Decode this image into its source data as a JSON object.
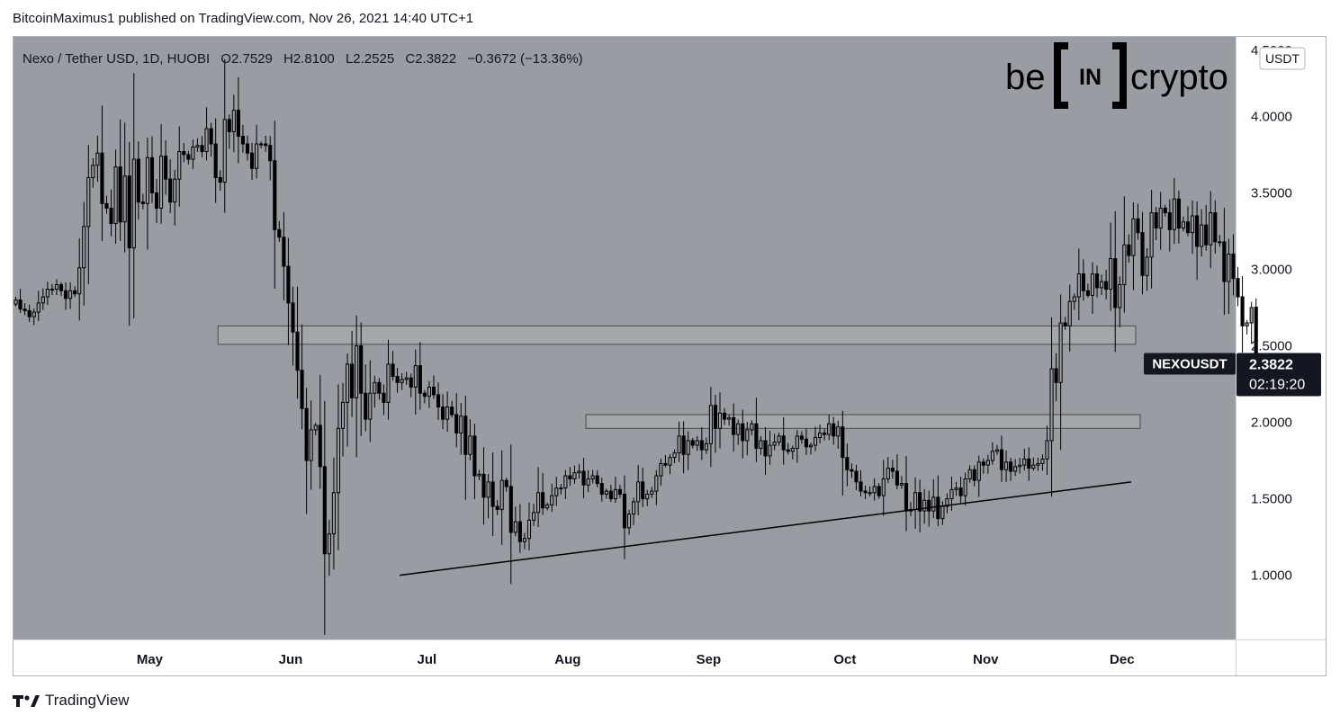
{
  "header": {
    "published_line": "BitcoinMaximus1 published on TradingView.com, Nov 26, 2021 14:40 UTC+1"
  },
  "legend": {
    "symbol": "Nexo / Tether USD, 1D, HUOBI",
    "o_label": "O",
    "o_value": "2.7529",
    "h_label": "H",
    "h_value": "2.8100",
    "l_label": "L",
    "l_value": "2.2525",
    "c_label": "C",
    "c_value": "2.3822",
    "change": "−0.3672 (−13.36%)"
  },
  "logo": {
    "text_left": "be",
    "text_middle": "IN",
    "text_right": "crypto"
  },
  "price_scale": {
    "currency": "USDT",
    "top_partial": "4.5000"
  },
  "last_price": {
    "symbol": "NEXOUSDT",
    "price": "2.3822",
    "countdown": "02:19:20"
  },
  "footer": {
    "brand": "TradingView"
  },
  "colors": {
    "background": "#999ca3",
    "candle": "#000000",
    "zone_fill": "#a7a9ae",
    "zone_stroke": "#4a4a4a",
    "trendline": "#000000",
    "axis_text": "#131722",
    "label_bg": "#131722",
    "label_text": "#ffffff"
  },
  "chart_data": {
    "type": "candlestick",
    "y_axis": {
      "ticks": [
        1.0,
        1.5,
        2.0,
        2.5,
        3.0,
        3.5,
        4.0
      ],
      "tick_labels": [
        "1.0000",
        "1.5000",
        "2.0000",
        "2.5000",
        "3.0000",
        "3.5000",
        "4.0000"
      ],
      "range": [
        0.58,
        4.52
      ]
    },
    "x_axis": {
      "labels": [
        "May",
        "Jun",
        "Jul",
        "Aug",
        "Sep",
        "Oct",
        "Nov",
        "Dec"
      ],
      "label_dates": [
        "2021-05-01",
        "2021-06-01",
        "2021-07-01",
        "2021-08-01",
        "2021-09-01",
        "2021-10-01",
        "2021-11-01",
        "2021-12-01"
      ],
      "range": [
        "2021-04-01",
        "2021-12-26"
      ]
    },
    "start_date": "2021-04-01",
    "closes": [
      2.8,
      2.74,
      2.73,
      2.69,
      2.72,
      2.78,
      2.82,
      2.87,
      2.87,
      2.9,
      2.86,
      2.81,
      2.86,
      2.84,
      3.01,
      3.28,
      3.6,
      3.68,
      3.76,
      3.43,
      3.4,
      3.3,
      3.67,
      3.31,
      3.61,
      3.14,
      3.72,
      3.44,
      3.43,
      3.73,
      3.5,
      3.4,
      3.74,
      3.59,
      3.44,
      3.59,
      3.77,
      3.75,
      3.72,
      3.8,
      3.81,
      3.77,
      3.92,
      3.82,
      3.6,
      3.57,
      3.98,
      3.9,
      4.04,
      3.87,
      3.82,
      3.76,
      3.66,
      3.82,
      3.82,
      3.81,
      3.71,
      3.26,
      3.21,
      3.02,
      2.78,
      2.59,
      2.34,
      2.09,
      1.75,
      1.95,
      1.98,
      1.71,
      1.14,
      1.27,
      1.54,
      1.96,
      2.13,
      2.38,
      2.16,
      2.5,
      2.19,
      2.02,
      2.19,
      2.26,
      2.19,
      2.13,
      2.38,
      2.3,
      2.26,
      2.28,
      2.29,
      2.23,
      2.37,
      2.19,
      2.17,
      2.23,
      2.18,
      2.1,
      2.02,
      2.1,
      2.05,
      1.93,
      2.04,
      1.79,
      1.91,
      1.65,
      1.66,
      1.51,
      1.61,
      1.45,
      1.43,
      1.62,
      1.58,
      1.28,
      1.35,
      1.22,
      1.24,
      1.36,
      1.41,
      1.54,
      1.44,
      1.46,
      1.52,
      1.57,
      1.57,
      1.65,
      1.63,
      1.67,
      1.68,
      1.59,
      1.63,
      1.65,
      1.6,
      1.53,
      1.55,
      1.5,
      1.56,
      1.53,
      1.31,
      1.4,
      1.48,
      1.61,
      1.5,
      1.53,
      1.55,
      1.65,
      1.73,
      1.72,
      1.77,
      1.8,
      1.91,
      1.79,
      1.88,
      1.85,
      1.88,
      1.82,
      1.86,
      2.11,
      1.96,
      2.06,
      2.02,
      2.03,
      1.92,
      1.99,
      1.88,
      1.95,
      1.99,
      1.83,
      1.88,
      1.78,
      1.85,
      1.87,
      1.91,
      1.82,
      1.81,
      1.83,
      1.91,
      1.89,
      1.84,
      1.85,
      1.9,
      1.93,
      1.92,
      1.99,
      1.91,
      1.97,
      1.77,
      1.69,
      1.68,
      1.61,
      1.55,
      1.54,
      1.54,
      1.58,
      1.52,
      1.63,
      1.7,
      1.68,
      1.59,
      1.6,
      1.42,
      1.43,
      1.54,
      1.42,
      1.49,
      1.42,
      1.51,
      1.37,
      1.45,
      1.5,
      1.56,
      1.57,
      1.52,
      1.63,
      1.69,
      1.62,
      1.74,
      1.72,
      1.75,
      1.81,
      1.82,
      1.69,
      1.74,
      1.68,
      1.71,
      1.72,
      1.76,
      1.7,
      1.72,
      1.73,
      1.76,
      1.88,
      2.35,
      2.26,
      2.65,
      2.63,
      2.79,
      2.82,
      2.97,
      2.86,
      2.83,
      2.97,
      2.88,
      2.92,
      2.87,
      3.07,
      2.75,
      2.9,
      3.16,
      3.09,
      3.33,
      3.24,
      2.96,
      3.08,
      3.37,
      3.27,
      3.4,
      3.37,
      3.26,
      3.46,
      3.27,
      3.31,
      3.24,
      3.35,
      3.15,
      3.29,
      3.16,
      3.37,
      3.18,
      3.18,
      2.92,
      3.1,
      2.94,
      2.82,
      2.63,
      2.65,
      2.75,
      2.38
    ],
    "last": {
      "open": 2.7529,
      "high": 2.81,
      "low": 2.2525,
      "close": 2.3822
    },
    "zones": [
      {
        "start": "2021-05-16",
        "end": "2021-12-04",
        "low": 2.51,
        "high": 2.63
      },
      {
        "start": "2021-08-05",
        "end": "2021-12-05",
        "low": 1.96,
        "high": 2.05
      }
    ],
    "trendline": {
      "start_date": "2021-06-25",
      "start_price": 1.0,
      "end_date": "2021-12-03",
      "end_price": 1.61
    }
  }
}
